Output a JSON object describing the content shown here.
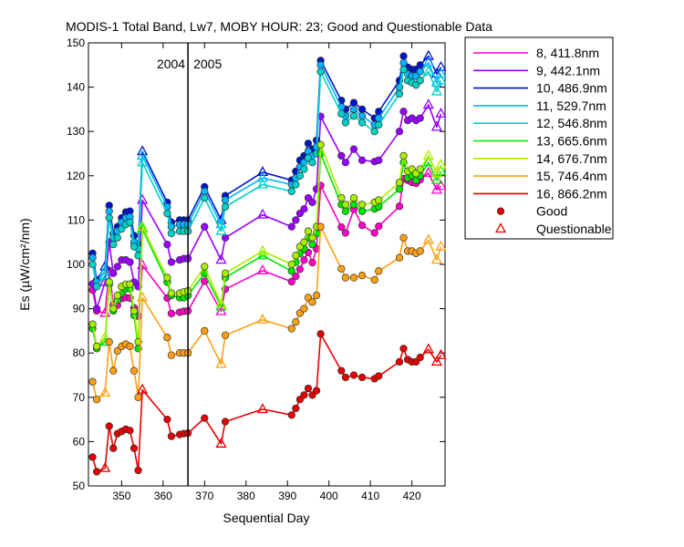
{
  "chart_data": {
    "type": "line",
    "title": "MODIS-1 Total Band,  Lw7, MOBY HOUR: 23;  Good and Questionable Data",
    "xlabel": "Sequential Day",
    "ylabel": "Es (µW/cm²/nm)",
    "xlim": [
      342,
      428
    ],
    "ylim": [
      50,
      150
    ],
    "xticks": [
      350,
      360,
      370,
      380,
      390,
      400,
      410,
      420
    ],
    "yticks": [
      50,
      60,
      70,
      80,
      90,
      100,
      110,
      120,
      130,
      140,
      150
    ],
    "grid": false,
    "legend_position": "right",
    "year_divider": {
      "x": 366,
      "left_label": "2004",
      "right_label": "2005"
    },
    "marker_legend": {
      "good": "Good",
      "questionable": "Questionable"
    },
    "x": [
      343,
      344,
      346,
      347,
      348,
      349,
      350,
      351,
      352,
      353,
      354,
      355,
      361,
      362,
      364,
      365,
      366,
      370,
      374,
      375,
      384,
      391,
      392,
      393,
      394,
      395,
      396,
      397,
      398,
      403,
      404,
      406,
      408,
      411,
      412,
      417,
      418,
      419,
      420,
      421,
      422,
      424,
      426,
      427
    ],
    "quality": [
      "G",
      "G",
      "Q",
      "G",
      "G",
      "G",
      "G",
      "G",
      "G",
      "G",
      "G",
      "Q",
      "G",
      "G",
      "G",
      "G",
      "G",
      "G",
      "Q",
      "G",
      "Q",
      "G",
      "G",
      "G",
      "G",
      "G",
      "G",
      "G",
      "G",
      "G",
      "G",
      "G",
      "G",
      "G",
      "G",
      "G",
      "G",
      "G",
      "G",
      "G",
      "G",
      "Q",
      "Q",
      "Q"
    ],
    "series": [
      {
        "name": "8, 411.8nm",
        "color": "#ff00c8",
        "values": [
          94.2,
          89.5,
          89.0,
          98.6,
          90.9,
          90.8,
          92.3,
          92.5,
          92.4,
          90.2,
          88.3,
          99.8,
          92.4,
          88.9,
          89.2,
          89.4,
          89.5,
          96.2,
          89.4,
          94.4,
          98.6,
          96.1,
          97.3,
          98.9,
          101.0,
          102.7,
          100.4,
          103.5,
          117.8,
          108.4,
          107.1,
          112.4,
          108.8,
          107.1,
          108.6,
          113.1,
          119.3,
          119.0,
          118.5,
          118.3,
          119.1,
          120.6,
          116.8,
          117.7
        ]
      },
      {
        "name": "9, 442.1nm",
        "color": "#9900ff",
        "values": [
          95.6,
          90.0,
          96.0,
          105.0,
          98.0,
          99.5,
          101.0,
          101.0,
          100.5,
          96.0,
          95.0,
          114.5,
          104.5,
          100.5,
          101.0,
          101.3,
          101.3,
          108.5,
          101.0,
          106.0,
          111.2,
          108.5,
          110.0,
          111.5,
          112.5,
          115.0,
          114.0,
          117.0,
          133.4,
          124.5,
          123.0,
          126.0,
          123.5,
          123.2,
          123.5,
          130.0,
          134.5,
          132.5,
          133.0,
          132.5,
          133.0,
          136.0,
          131.0,
          134.0
        ]
      },
      {
        "name": "10, 486.9nm",
        "color": "#0014c8",
        "values": [
          102.5,
          96.5,
          99.5,
          113.3,
          107.0,
          108.5,
          110.5,
          111.8,
          112.0,
          106.5,
          104.5,
          125.5,
          114.0,
          109.5,
          110.0,
          110.0,
          110.0,
          117.5,
          110.0,
          115.5,
          120.8,
          119.0,
          121.0,
          123.5,
          124.5,
          127.3,
          126.0,
          128.0,
          146.0,
          137.0,
          135.0,
          136.5,
          135.0,
          133.0,
          134.5,
          141.5,
          147.0,
          144.5,
          144.0,
          144.0,
          145.0,
          147.0,
          143.0,
          144.5
        ]
      },
      {
        "name": "11, 529.7nm",
        "color": "#00b4ff",
        "values": [
          101.5,
          96.0,
          98.5,
          112.0,
          106.0,
          107.5,
          109.5,
          110.5,
          110.7,
          105.0,
          103.5,
          124.5,
          113.0,
          108.5,
          109.0,
          109.0,
          109.0,
          116.5,
          109.0,
          114.5,
          119.5,
          118.0,
          119.5,
          122.0,
          123.0,
          125.5,
          124.5,
          126.5,
          145.0,
          135.5,
          133.5,
          135.0,
          133.5,
          131.5,
          133.0,
          140.0,
          145.5,
          143.0,
          142.5,
          142.5,
          143.5,
          145.5,
          141.0,
          143.0
        ]
      },
      {
        "name": "12, 546.8nm",
        "color": "#00d2c8",
        "values": [
          100.0,
          95.0,
          97.5,
          110.5,
          104.5,
          106.0,
          108.0,
          109.0,
          109.5,
          104.0,
          102.0,
          123.0,
          111.5,
          107.0,
          107.5,
          107.5,
          107.5,
          115.0,
          107.5,
          113.0,
          118.0,
          116.5,
          118.0,
          120.0,
          121.5,
          124.0,
          123.0,
          125.0,
          143.5,
          134.0,
          132.0,
          133.5,
          132.0,
          130.0,
          131.5,
          138.5,
          144.0,
          141.5,
          141.0,
          140.5,
          141.5,
          143.5,
          139.0,
          141.5
        ]
      },
      {
        "name": "13, 665.6nm",
        "color": "#00e600",
        "values": [
          85.5,
          81.0,
          82.5,
          95.5,
          89.5,
          92.0,
          93.5,
          94.5,
          94.5,
          88.5,
          81.0,
          108.0,
          96.0,
          93.0,
          92.5,
          92.5,
          93.0,
          98.0,
          90.5,
          97.0,
          102.0,
          98.5,
          100.5,
          102.5,
          103.5,
          106.0,
          104.5,
          107.0,
          125.0,
          113.5,
          112.0,
          113.5,
          112.0,
          112.5,
          113.0,
          117.0,
          123.0,
          119.5,
          120.0,
          119.0,
          120.0,
          123.0,
          119.0,
          121.0
        ]
      },
      {
        "name": "14, 676.7nm",
        "color": "#aaee00",
        "values": [
          86.5,
          81.5,
          83.5,
          96.0,
          90.0,
          93.0,
          95.0,
          95.5,
          95.5,
          89.5,
          82.5,
          108.5,
          97.0,
          93.5,
          93.5,
          93.8,
          94.0,
          99.5,
          91.0,
          98.0,
          103.0,
          100.0,
          102.0,
          104.0,
          105.0,
          107.5,
          106.0,
          108.5,
          127.0,
          115.0,
          113.5,
          115.0,
          113.5,
          114.0,
          114.5,
          118.5,
          124.5,
          121.0,
          121.5,
          120.5,
          121.5,
          124.5,
          120.5,
          122.5
        ]
      },
      {
        "name": "15, 746.4nm",
        "color": "#ffa014",
        "values": [
          73.5,
          69.5,
          71.0,
          82.5,
          76.0,
          80.5,
          81.5,
          82.0,
          81.5,
          76.0,
          70.0,
          92.5,
          83.5,
          79.5,
          80.0,
          80.0,
          80.0,
          85.0,
          77.5,
          84.0,
          87.5,
          85.5,
          87.0,
          89.0,
          90.0,
          92.5,
          91.5,
          93.0,
          108.5,
          99.0,
          97.0,
          97.0,
          97.5,
          96.5,
          98.5,
          101.5,
          106.0,
          103.0,
          103.0,
          102.5,
          103.0,
          105.5,
          101.0,
          104.0
        ]
      },
      {
        "name": "16, 866.2nm",
        "color": "#e60000",
        "values": [
          56.5,
          53.2,
          54.0,
          63.5,
          58.5,
          61.8,
          62.3,
          62.8,
          62.5,
          58.5,
          53.5,
          71.7,
          65.0,
          61.2,
          61.6,
          61.8,
          61.9,
          65.3,
          59.5,
          64.5,
          67.3,
          66.0,
          67.5,
          69.5,
          70.5,
          72.0,
          70.5,
          71.5,
          84.3,
          76.0,
          74.5,
          75.0,
          74.5,
          74.2,
          74.8,
          78.0,
          81.0,
          78.5,
          78.0,
          78.0,
          79.0,
          80.8,
          78.0,
          79.5
        ]
      }
    ]
  }
}
